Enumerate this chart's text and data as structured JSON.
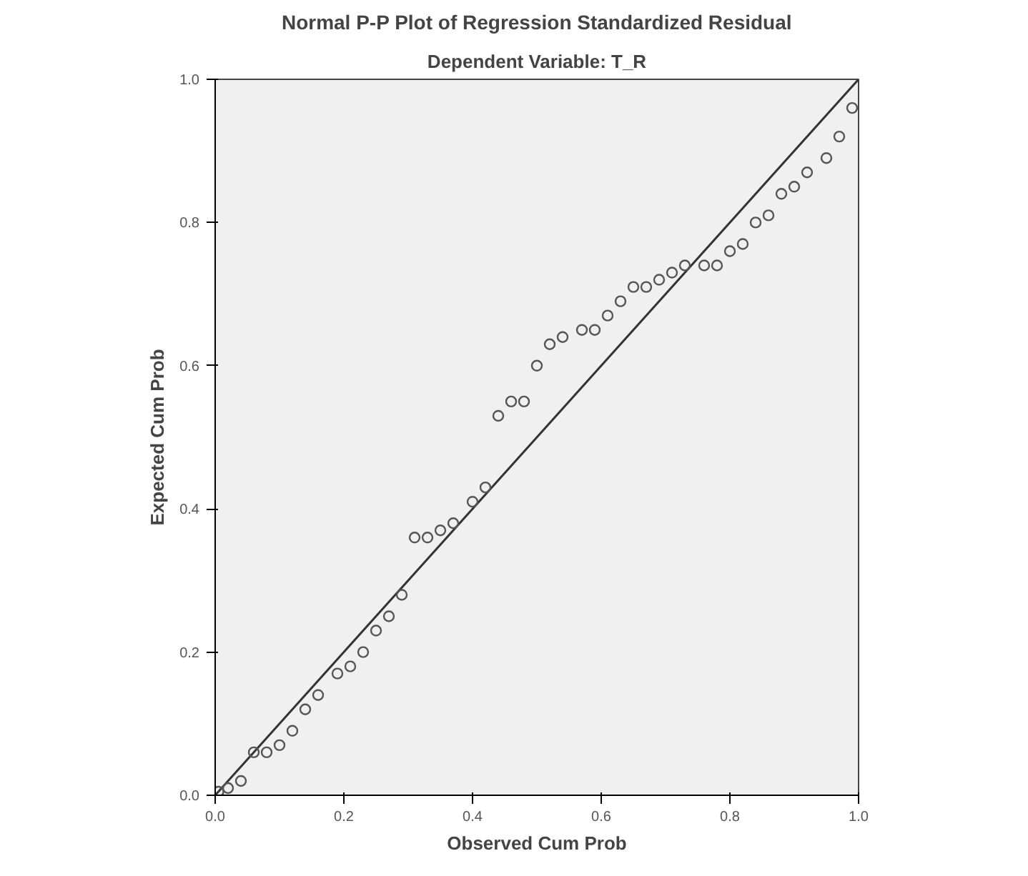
{
  "chart_data": {
    "type": "scatter",
    "title": "Normal P-P Plot of Regression Standardized Residual",
    "subtitle": "Dependent Variable: T_R",
    "xlabel": "Observed Cum Prob",
    "ylabel": "Expected Cum Prob",
    "xlim": [
      0,
      1
    ],
    "ylim": [
      0,
      1
    ],
    "xticks": [
      {
        "value": 0,
        "label": "0.0"
      },
      0.2,
      0.4,
      0.6,
      0.8,
      {
        "value": 1,
        "label": "1.0"
      }
    ],
    "yticks": [
      {
        "value": 0,
        "label": "0.0"
      },
      0.2,
      0.4,
      0.6,
      0.8,
      {
        "value": 1,
        "label": "1.0"
      }
    ],
    "grid": false,
    "marker": "circle",
    "series": [
      {
        "color": "#555555",
        "x": [
          0.005,
          0.02,
          0.04,
          0.06,
          0.08,
          0.1,
          0.12,
          0.14,
          0.16,
          0.19,
          0.21,
          0.23,
          0.25,
          0.27,
          0.29,
          0.31,
          0.33,
          0.35,
          0.37,
          0.4,
          0.42,
          0.44,
          0.46,
          0.48,
          0.5,
          0.52,
          0.54,
          0.57,
          0.59,
          0.61,
          0.63,
          0.65,
          0.67,
          0.69,
          0.71,
          0.73,
          0.76,
          0.78,
          0.8,
          0.82,
          0.84,
          0.86,
          0.88,
          0.9,
          0.92,
          0.95,
          0.97,
          0.99
        ],
        "values": [
          0.005,
          0.01,
          0.02,
          0.06,
          0.06,
          0.07,
          0.09,
          0.12,
          0.14,
          0.17,
          0.18,
          0.2,
          0.23,
          0.25,
          0.28,
          0.36,
          0.36,
          0.37,
          0.38,
          0.41,
          0.43,
          0.53,
          0.55,
          0.55,
          0.6,
          0.63,
          0.64,
          0.65,
          0.65,
          0.67,
          0.69,
          0.71,
          0.71,
          0.72,
          0.73,
          0.74,
          0.74,
          0.74,
          0.76,
          0.77,
          0.8,
          0.81,
          0.84,
          0.85,
          0.87,
          0.89,
          0.92,
          0.96
        ]
      },
      {
        "type": "line",
        "marker": "none",
        "color": "#333333",
        "x": [
          0,
          1
        ],
        "values": [
          0,
          1
        ]
      }
    ]
  }
}
